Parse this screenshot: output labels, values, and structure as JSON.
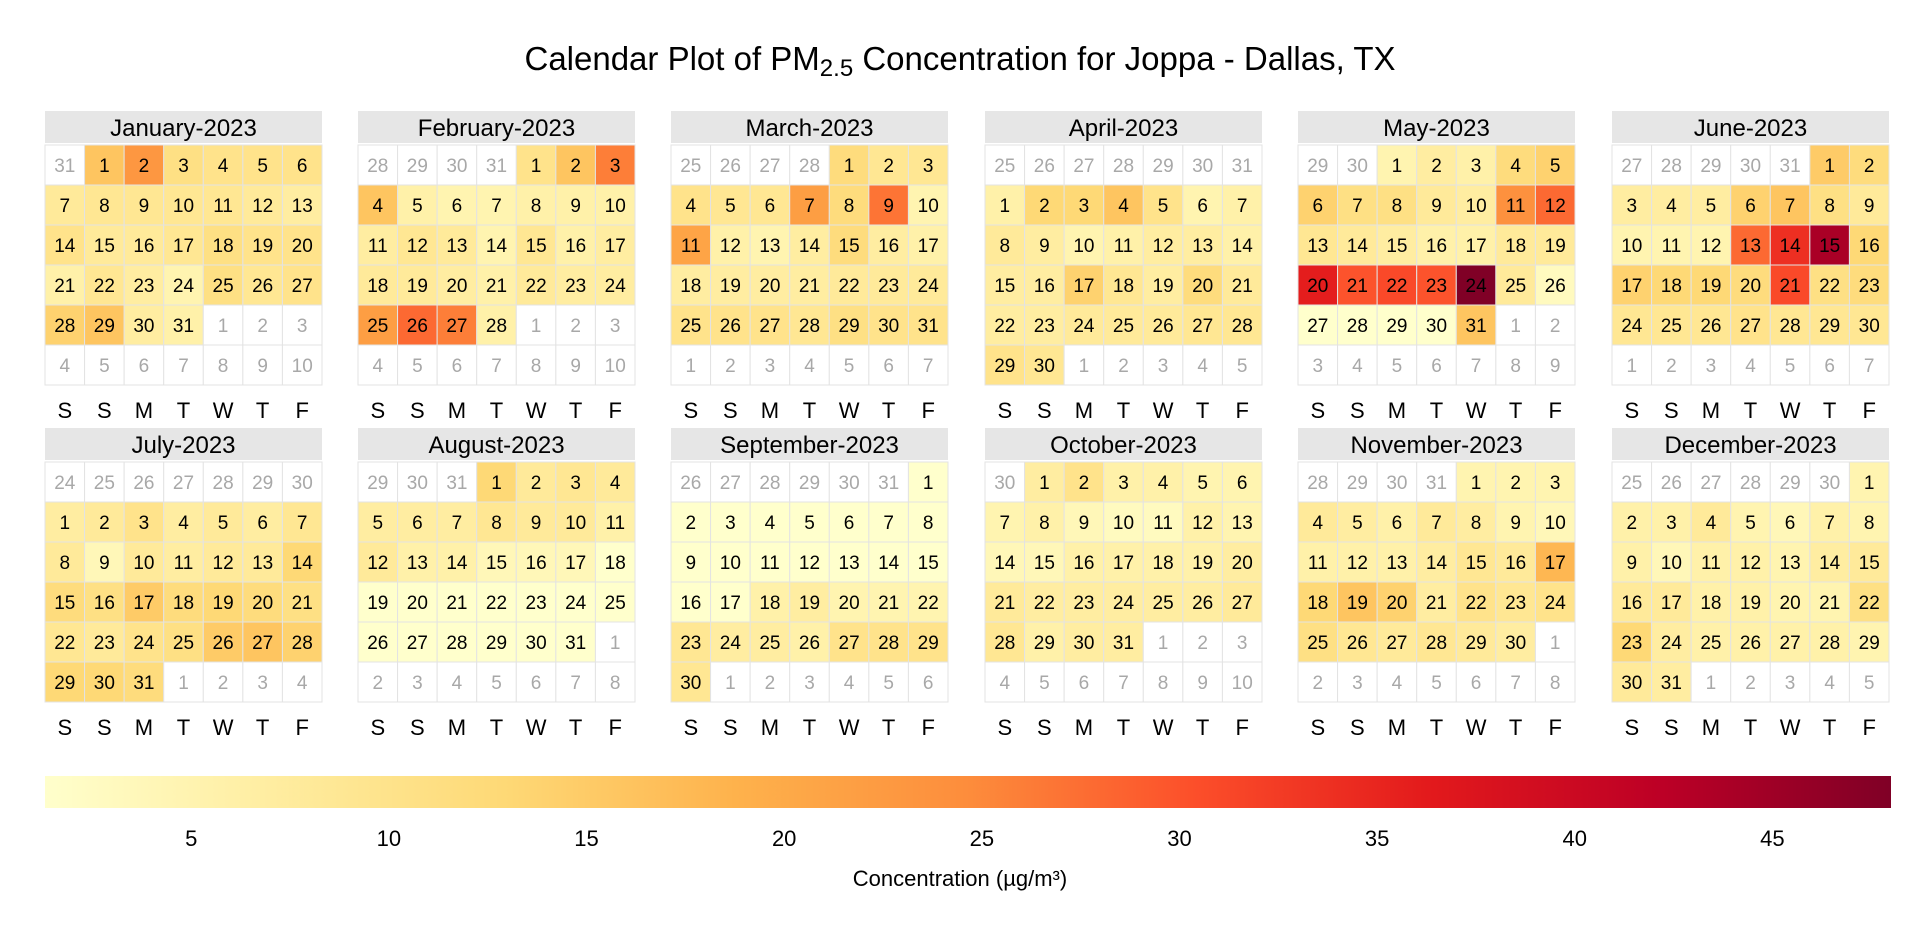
{
  "title": {
    "main": "Calendar Plot of PM",
    "sub": "2.5",
    "rest": " Concentration for Joppa - Dallas, TX"
  },
  "weekdays": [
    "S",
    "S",
    "M",
    "T",
    "W",
    "T",
    "F"
  ],
  "legend": {
    "title": "Concentration (µg/m³)",
    "ticks": [
      "5",
      "10",
      "15",
      "20",
      "25",
      "30",
      "35",
      "40",
      "45"
    ],
    "tick_values": [
      5,
      10,
      15,
      20,
      25,
      30,
      35,
      40,
      45
    ],
    "range": [
      1.3,
      48
    ],
    "colors": [
      "#FFFFCC",
      "#FFEDA0",
      "#FED976",
      "#FEB24C",
      "#FD8D3C",
      "#FC4E2A",
      "#E31A1C",
      "#BD0026",
      "#800026"
    ]
  },
  "chart_data": {
    "type": "heatmap",
    "title": "Calendar Plot of PM2.5 Concentration for Joppa - Dallas, TX",
    "xlabel": "",
    "ylabel": "",
    "legend_title": "Concentration (µg/m³)",
    "year": 2023,
    "months": [
      {
        "name": "January-2023",
        "lead": [
          31
        ],
        "trail": [
          1,
          2,
          3,
          4,
          5,
          6,
          7,
          8,
          9,
          10
        ],
        "values": [
          16,
          23,
          11,
          10,
          10,
          10,
          8,
          9,
          9,
          9,
          9,
          8,
          7,
          10,
          8,
          8,
          9,
          11,
          10,
          10,
          6,
          9,
          7,
          5,
          11,
          9,
          10,
          14,
          16,
          7,
          6
        ]
      },
      {
        "name": "February-2023",
        "lead": [
          28,
          29,
          30,
          31
        ],
        "trail": [
          1,
          2,
          3,
          4,
          5,
          6,
          7,
          8,
          9,
          10
        ],
        "values": [
          10,
          16,
          26,
          16,
          6,
          5,
          5,
          6,
          6,
          6,
          7,
          9,
          8,
          5,
          9,
          6,
          7,
          8,
          8,
          7,
          6,
          8,
          7,
          7,
          22,
          28,
          26,
          6
        ]
      },
      {
        "name": "March-2023",
        "lead": [
          25,
          26,
          27,
          28
        ],
        "trail": [
          1,
          2,
          3,
          4,
          5,
          6,
          7
        ],
        "values": [
          12,
          9,
          9,
          10,
          9,
          9,
          22,
          12,
          27,
          5,
          21,
          6,
          5,
          7,
          12,
          7,
          6,
          7,
          7,
          7,
          7,
          8,
          8,
          8,
          10,
          10,
          10,
          9,
          11,
          10,
          10
        ]
      },
      {
        "name": "April-2023",
        "lead": [
          25,
          26,
          27,
          28,
          29,
          30,
          31
        ],
        "trail": [
          1,
          2,
          3,
          4,
          5
        ],
        "values": [
          6,
          13,
          13,
          16,
          10,
          5,
          6,
          8,
          7,
          5,
          6,
          7,
          7,
          6,
          7,
          7,
          14,
          9,
          7,
          12,
          8,
          7,
          7,
          8,
          8,
          8,
          9,
          9,
          10,
          9
        ]
      },
      {
        "name": "May-2023",
        "lead": [
          29,
          30
        ],
        "trail": [
          1,
          2,
          3,
          4,
          5,
          6,
          7,
          8,
          9
        ],
        "values": [
          5,
          7,
          6,
          12,
          14,
          14,
          11,
          11,
          8,
          7,
          24,
          28,
          9,
          8,
          7,
          6,
          6,
          8,
          8,
          36,
          30,
          31,
          30,
          48,
          8,
          3,
          1,
          1,
          1,
          1,
          16
        ]
      },
      {
        "name": "June-2023",
        "lead": [
          27,
          28,
          29,
          30,
          31
        ],
        "trail": [
          1,
          2,
          3,
          4,
          5,
          6,
          7
        ],
        "values": [
          15,
          12,
          7,
          7,
          7,
          14,
          16,
          11,
          8,
          5,
          5,
          5,
          28,
          34,
          44,
          13,
          14,
          13,
          13,
          12,
          31,
          11,
          12,
          9,
          9,
          9,
          10,
          9,
          9,
          9
        ]
      },
      {
        "name": "July-2023",
        "lead": [
          24,
          25,
          26,
          27,
          28,
          29,
          30
        ],
        "trail": [
          1,
          2,
          3,
          4
        ],
        "values": [
          7,
          8,
          10,
          7,
          8,
          7,
          9,
          8,
          4,
          8,
          7,
          8,
          8,
          13,
          12,
          11,
          15,
          12,
          13,
          12,
          11,
          9,
          8,
          10,
          11,
          15,
          16,
          14,
          13,
          13,
          12
        ]
      },
      {
        "name": "August-2023",
        "lead": [
          29,
          30,
          31
        ],
        "trail": [
          1,
          2,
          3,
          4,
          5,
          6,
          7,
          8
        ],
        "values": [
          13,
          8,
          9,
          8,
          7,
          7,
          7,
          9,
          8,
          8,
          6,
          8,
          6,
          6,
          4,
          4,
          4,
          1,
          1,
          1,
          1,
          1,
          1,
          1,
          1,
          1,
          1,
          1,
          1,
          1,
          1
        ]
      },
      {
        "name": "September-2023",
        "lead": [
          26,
          27,
          28,
          29,
          30,
          31
        ],
        "trail": [
          1,
          2,
          3,
          4,
          5,
          6
        ],
        "values": [
          1,
          1,
          1,
          1,
          1,
          1,
          1,
          1,
          1,
          1,
          1,
          1,
          1,
          1,
          1,
          1,
          1,
          6,
          7,
          5,
          5,
          5,
          9,
          7,
          7,
          6,
          10,
          10,
          10,
          9
        ]
      },
      {
        "name": "October-2023",
        "lead": [
          30
        ],
        "trail": [
          1,
          2,
          3,
          4,
          5,
          6,
          7,
          8,
          9,
          10
        ],
        "values": [
          7,
          10,
          6,
          6,
          5,
          5,
          5,
          6,
          4,
          3,
          3,
          6,
          5,
          4,
          4,
          6,
          6,
          6,
          6,
          7,
          8,
          7,
          7,
          7,
          7,
          7,
          8,
          9,
          6,
          7,
          7
        ]
      },
      {
        "name": "November-2023",
        "lead": [
          28,
          29,
          30,
          31
        ],
        "trail": [
          1,
          2,
          3,
          4,
          5,
          6,
          7,
          8
        ],
        "values": [
          5,
          5,
          5,
          8,
          7,
          6,
          8,
          7,
          5,
          4,
          6,
          6,
          6,
          7,
          9,
          8,
          18,
          13,
          16,
          14,
          7,
          10,
          9,
          10,
          11,
          9,
          8,
          9,
          8,
          7
        ]
      },
      {
        "name": "December-2023",
        "lead": [
          25,
          26,
          27,
          28,
          29,
          30
        ],
        "trail": [
          1,
          2,
          3,
          4,
          5
        ],
        "values": [
          5,
          6,
          6,
          8,
          5,
          4,
          6,
          5,
          6,
          4,
          6,
          6,
          5,
          7,
          8,
          8,
          8,
          6,
          6,
          5,
          5,
          11,
          13,
          7,
          6,
          6,
          6,
          6,
          5,
          8,
          7
        ]
      }
    ]
  }
}
